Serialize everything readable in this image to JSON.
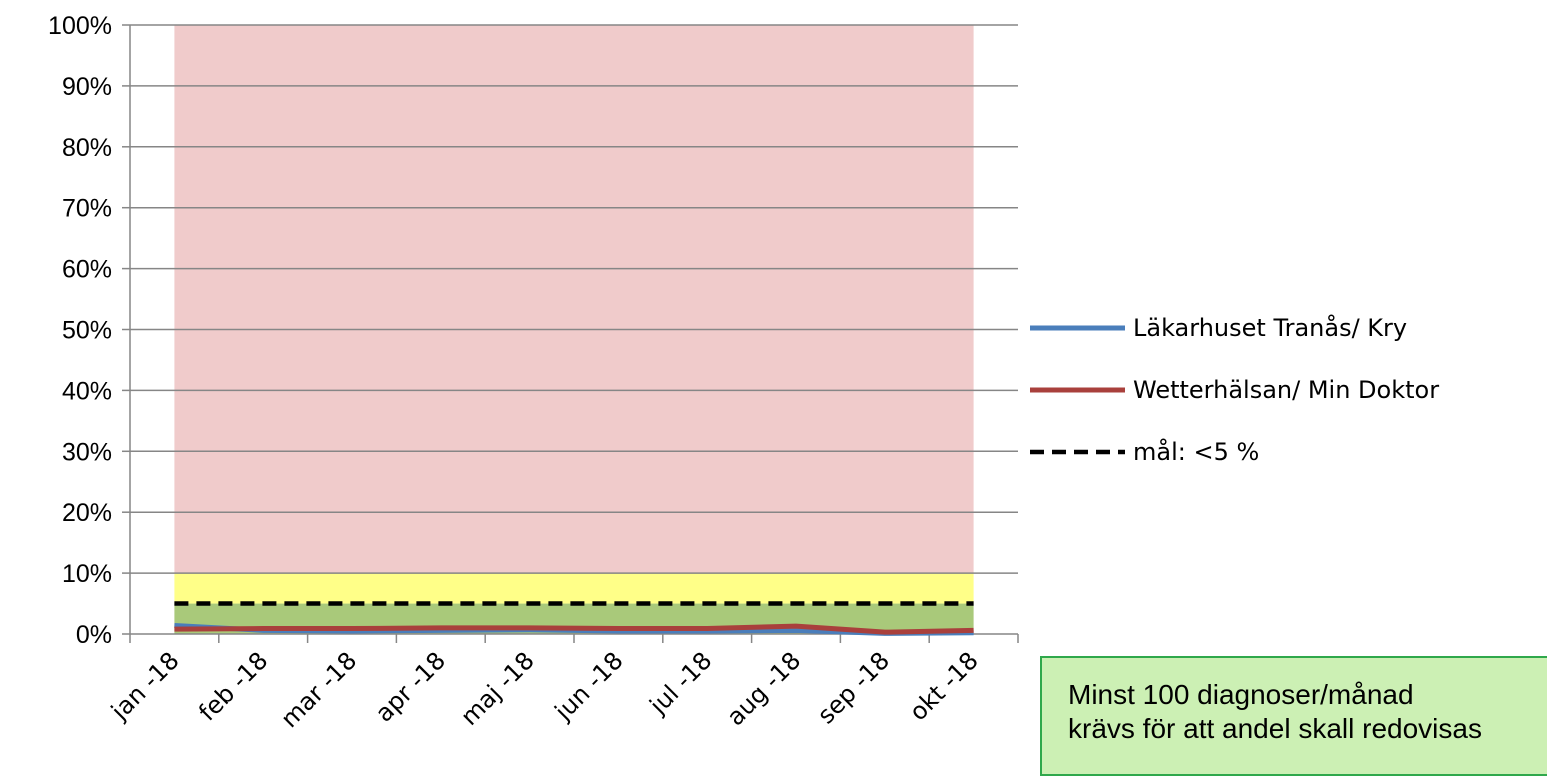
{
  "chart_data": {
    "type": "line",
    "categories": [
      "jan -18",
      "feb -18",
      "mar -18",
      "apr -18",
      "maj -18",
      "jun -18",
      "jul -18",
      "aug -18",
      "sep -18",
      "okt -18"
    ],
    "y_ticks": [
      "0%",
      "10%",
      "20%",
      "30%",
      "40%",
      "50%",
      "60%",
      "70%",
      "80%",
      "90%",
      "100%"
    ],
    "ylim": [
      0,
      100
    ],
    "grid": true,
    "legend_position": "right",
    "background_bands": [
      {
        "from": 0,
        "to": 5,
        "color": "#a9c97a"
      },
      {
        "from": 5,
        "to": 10,
        "color": "#ffff88"
      },
      {
        "from": 10,
        "to": 100,
        "color": "#f0cbcb"
      }
    ],
    "series": [
      {
        "name": "Läkarhuset Tranås/ Kry",
        "color": "#4a7ebb",
        "style": "solid",
        "values": [
          1.4,
          0.6,
          0.5,
          0.6,
          0.7,
          0.5,
          0.5,
          0.6,
          0.1,
          0.2
        ]
      },
      {
        "name": "Wetterhälsan/ Min Doktor",
        "color": "#a9403c",
        "style": "solid",
        "values": [
          0.8,
          0.9,
          0.9,
          1.0,
          1.0,
          0.9,
          0.9,
          1.3,
          0.3,
          0.6
        ]
      },
      {
        "name": "mål: <5 %",
        "color": "#000000",
        "style": "dashed",
        "values": [
          5,
          5,
          5,
          5,
          5,
          5,
          5,
          5,
          5,
          5
        ]
      }
    ]
  },
  "note": {
    "line1": "Minst 100 diagnoser/månad",
    "line2": "krävs för att andel skall redovisas"
  }
}
